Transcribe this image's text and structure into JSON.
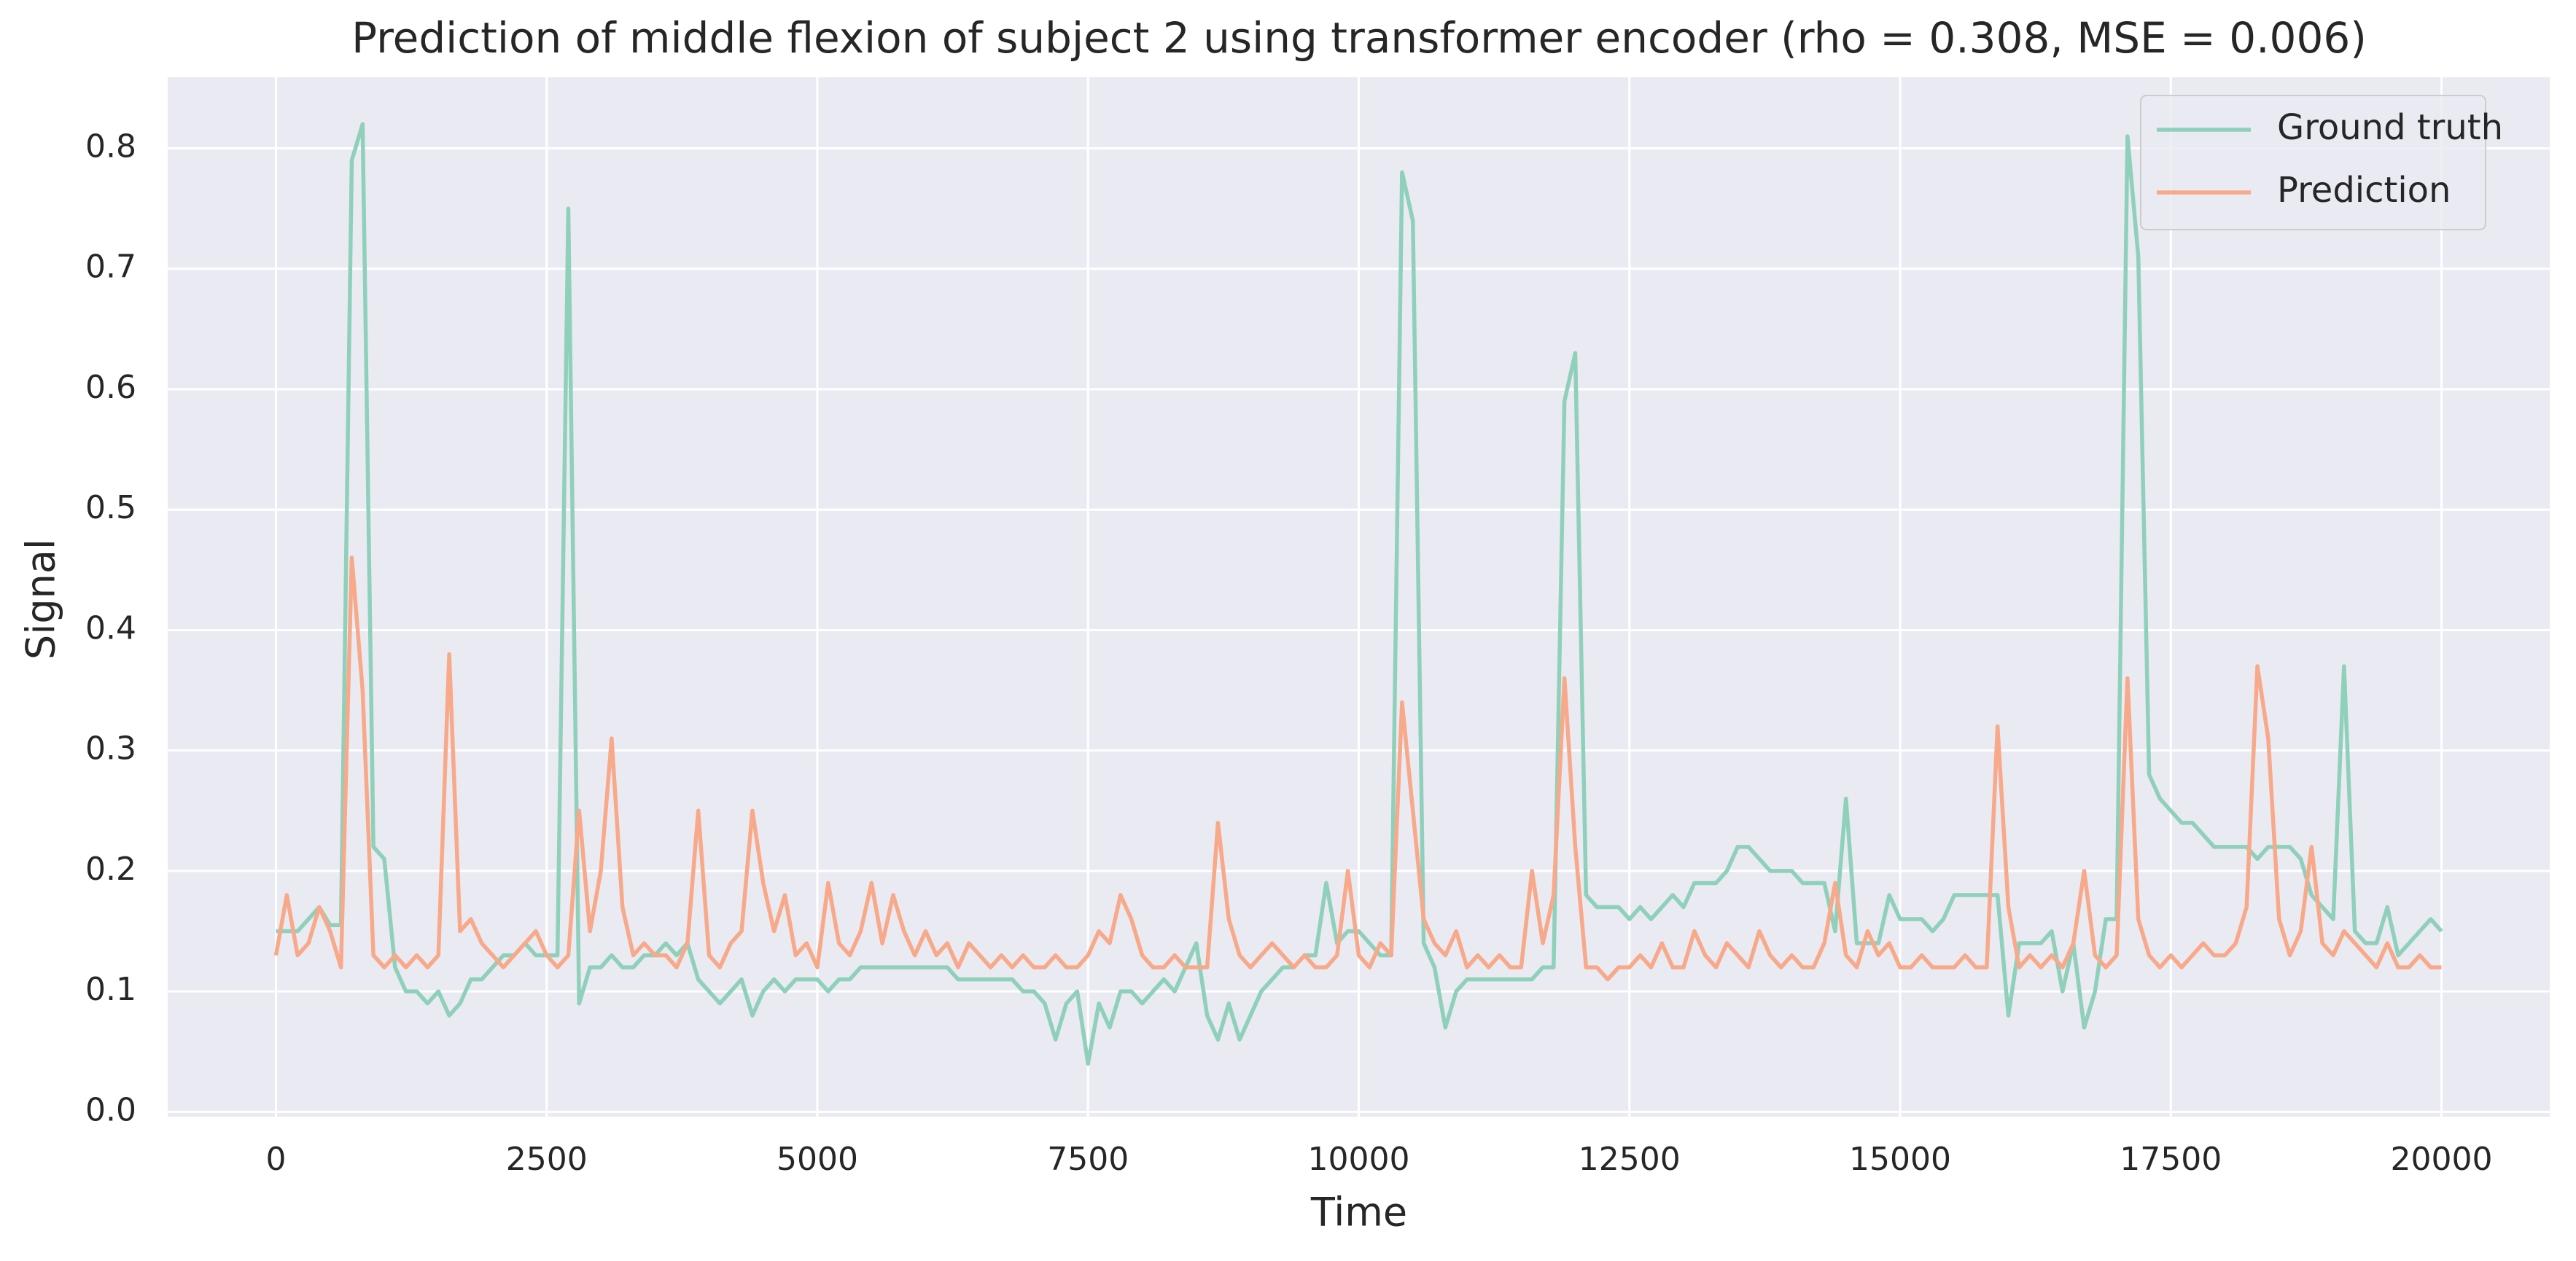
{
  "chart_data": {
    "type": "line",
    "title": "Prediction of middle flexion of subject 2 using transformer encoder (rho = 0.308, MSE = 0.006)",
    "x_label": "Time",
    "y_label": "Signal",
    "xlim": [
      -1000,
      21000
    ],
    "ylim": [
      -0.004,
      0.859
    ],
    "xticks": [
      0,
      2500,
      5000,
      7500,
      10000,
      12500,
      15000,
      17500,
      20000
    ],
    "yticks": [
      {
        "value": 0,
        "label": "0.0"
      },
      0.1,
      0.2,
      0.3,
      0.4,
      0.5,
      0.6,
      0.7,
      0.8
    ],
    "grid": true,
    "legend": "upper right",
    "x": [
      0,
      100,
      200,
      300,
      400,
      500,
      600,
      700,
      800,
      900,
      1000,
      1100,
      1200,
      1300,
      1400,
      1500,
      1600,
      1700,
      1800,
      1900,
      2000,
      2100,
      2200,
      2300,
      2400,
      2500,
      2600,
      2700,
      2800,
      2900,
      3000,
      3100,
      3200,
      3300,
      3400,
      3500,
      3600,
      3700,
      3800,
      3900,
      4000,
      4100,
      4200,
      4300,
      4400,
      4500,
      4600,
      4700,
      4800,
      4900,
      5000,
      5100,
      5200,
      5300,
      5400,
      5500,
      5600,
      5700,
      5800,
      5900,
      6000,
      6100,
      6200,
      6300,
      6400,
      6500,
      6600,
      6700,
      6800,
      6900,
      7000,
      7100,
      7200,
      7300,
      7400,
      7500,
      7600,
      7700,
      7800,
      7900,
      8000,
      8100,
      8200,
      8300,
      8400,
      8500,
      8600,
      8700,
      8800,
      8900,
      9000,
      9100,
      9200,
      9300,
      9400,
      9500,
      9600,
      9700,
      9800,
      9900,
      10000,
      10100,
      10200,
      10300,
      10400,
      10500,
      10600,
      10700,
      10800,
      10900,
      11000,
      11100,
      11200,
      11300,
      11400,
      11500,
      11600,
      11700,
      11800,
      11900,
      12000,
      12100,
      12200,
      12300,
      12400,
      12500,
      12600,
      12700,
      12800,
      12900,
      13000,
      13100,
      13200,
      13300,
      13400,
      13500,
      13600,
      13700,
      13800,
      13900,
      14000,
      14100,
      14200,
      14300,
      14400,
      14500,
      14600,
      14700,
      14800,
      14900,
      15000,
      15100,
      15200,
      15300,
      15400,
      15500,
      15600,
      15700,
      15800,
      15900,
      16000,
      16100,
      16200,
      16300,
      16400,
      16500,
      16600,
      16700,
      16800,
      16900,
      17000,
      17100,
      17200,
      17300,
      17400,
      17500,
      17600,
      17700,
      17800,
      17900,
      18000,
      18100,
      18200,
      18300,
      18400,
      18500,
      18600,
      18700,
      18800,
      18900,
      19000,
      19100,
      19200,
      19300,
      19400,
      19500,
      19600,
      19700,
      19800,
      19900,
      20000
    ],
    "series": [
      {
        "name": "Ground truth",
        "color": "#8fd0bb",
        "values": [
          0.15,
          0.15,
          0.15,
          0.16,
          0.17,
          0.155,
          0.155,
          0.79,
          0.82,
          0.22,
          0.21,
          0.12,
          0.1,
          0.1,
          0.09,
          0.1,
          0.08,
          0.09,
          0.11,
          0.11,
          0.12,
          0.13,
          0.13,
          0.14,
          0.13,
          0.13,
          0.13,
          0.75,
          0.09,
          0.12,
          0.12,
          0.13,
          0.12,
          0.12,
          0.13,
          0.13,
          0.14,
          0.13,
          0.14,
          0.11,
          0.1,
          0.09,
          0.1,
          0.11,
          0.08,
          0.1,
          0.11,
          0.1,
          0.11,
          0.11,
          0.11,
          0.1,
          0.11,
          0.11,
          0.12,
          0.12,
          0.12,
          0.12,
          0.12,
          0.12,
          0.12,
          0.12,
          0.12,
          0.11,
          0.11,
          0.11,
          0.11,
          0.11,
          0.11,
          0.1,
          0.1,
          0.09,
          0.06,
          0.09,
          0.1,
          0.04,
          0.09,
          0.07,
          0.1,
          0.1,
          0.09,
          0.1,
          0.11,
          0.1,
          0.12,
          0.14,
          0.08,
          0.06,
          0.09,
          0.06,
          0.08,
          0.1,
          0.11,
          0.12,
          0.12,
          0.13,
          0.13,
          0.19,
          0.14,
          0.15,
          0.15,
          0.14,
          0.13,
          0.13,
          0.78,
          0.74,
          0.14,
          0.12,
          0.07,
          0.1,
          0.11,
          0.11,
          0.11,
          0.11,
          0.11,
          0.11,
          0.11,
          0.12,
          0.12,
          0.59,
          0.63,
          0.18,
          0.17,
          0.17,
          0.17,
          0.16,
          0.17,
          0.16,
          0.17,
          0.18,
          0.17,
          0.19,
          0.19,
          0.19,
          0.2,
          0.22,
          0.22,
          0.21,
          0.2,
          0.2,
          0.2,
          0.19,
          0.19,
          0.19,
          0.15,
          0.26,
          0.14,
          0.14,
          0.14,
          0.18,
          0.16,
          0.16,
          0.16,
          0.15,
          0.16,
          0.18,
          0.18,
          0.18,
          0.18,
          0.18,
          0.08,
          0.14,
          0.14,
          0.14,
          0.15,
          0.1,
          0.14,
          0.07,
          0.1,
          0.16,
          0.16,
          0.81,
          0.71,
          0.28,
          0.26,
          0.25,
          0.24,
          0.24,
          0.23,
          0.22,
          0.22,
          0.22,
          0.22,
          0.21,
          0.22,
          0.22,
          0.22,
          0.21,
          0.18,
          0.17,
          0.16,
          0.37,
          0.15,
          0.14,
          0.14,
          0.17,
          0.13,
          0.14,
          0.15,
          0.16,
          0.15
        ]
      },
      {
        "name": "Prediction",
        "color": "#f7a98a",
        "values": [
          0.13,
          0.18,
          0.13,
          0.14,
          0.17,
          0.15,
          0.12,
          0.46,
          0.35,
          0.13,
          0.12,
          0.13,
          0.12,
          0.13,
          0.12,
          0.13,
          0.38,
          0.15,
          0.16,
          0.14,
          0.13,
          0.12,
          0.13,
          0.14,
          0.15,
          0.13,
          0.12,
          0.13,
          0.25,
          0.15,
          0.2,
          0.31,
          0.17,
          0.13,
          0.14,
          0.13,
          0.13,
          0.12,
          0.14,
          0.25,
          0.13,
          0.12,
          0.14,
          0.15,
          0.25,
          0.19,
          0.15,
          0.18,
          0.13,
          0.14,
          0.12,
          0.19,
          0.14,
          0.13,
          0.15,
          0.19,
          0.14,
          0.18,
          0.15,
          0.13,
          0.15,
          0.13,
          0.14,
          0.12,
          0.14,
          0.13,
          0.12,
          0.13,
          0.12,
          0.13,
          0.12,
          0.12,
          0.13,
          0.12,
          0.12,
          0.13,
          0.15,
          0.14,
          0.18,
          0.16,
          0.13,
          0.12,
          0.12,
          0.13,
          0.12,
          0.12,
          0.12,
          0.24,
          0.16,
          0.13,
          0.12,
          0.13,
          0.14,
          0.13,
          0.12,
          0.13,
          0.12,
          0.12,
          0.13,
          0.2,
          0.13,
          0.12,
          0.14,
          0.13,
          0.34,
          0.25,
          0.16,
          0.14,
          0.13,
          0.15,
          0.12,
          0.13,
          0.12,
          0.13,
          0.12,
          0.12,
          0.2,
          0.14,
          0.18,
          0.36,
          0.22,
          0.12,
          0.12,
          0.11,
          0.12,
          0.12,
          0.13,
          0.12,
          0.14,
          0.12,
          0.12,
          0.15,
          0.13,
          0.12,
          0.14,
          0.13,
          0.12,
          0.15,
          0.13,
          0.12,
          0.13,
          0.12,
          0.12,
          0.14,
          0.19,
          0.13,
          0.12,
          0.15,
          0.13,
          0.14,
          0.12,
          0.12,
          0.13,
          0.12,
          0.12,
          0.12,
          0.13,
          0.12,
          0.12,
          0.32,
          0.17,
          0.12,
          0.13,
          0.12,
          0.13,
          0.12,
          0.14,
          0.2,
          0.13,
          0.12,
          0.13,
          0.36,
          0.16,
          0.13,
          0.12,
          0.13,
          0.12,
          0.13,
          0.14,
          0.13,
          0.13,
          0.14,
          0.17,
          0.37,
          0.31,
          0.16,
          0.13,
          0.15,
          0.22,
          0.14,
          0.13,
          0.15,
          0.14,
          0.13,
          0.12,
          0.14,
          0.12,
          0.12,
          0.13,
          0.12,
          0.12
        ]
      }
    ]
  }
}
